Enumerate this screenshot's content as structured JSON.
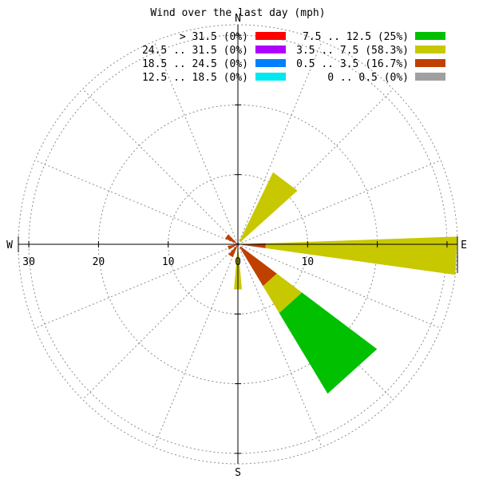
{
  "chart_data": {
    "type": "windrose",
    "title": "Wind over the last day (mph)",
    "directions": [
      "N",
      "E",
      "S",
      "W"
    ],
    "radial_ticks": [
      "0",
      "10",
      "20",
      "30"
    ],
    "rmax": 31.5,
    "legend": [
      {
        "label": "> 31.5 (0%)",
        "color": "#ff0000"
      },
      {
        "label": "24.5 .. 31.5 (0%)",
        "color": "#b000ff"
      },
      {
        "label": "18.5 .. 24.5 (0%)",
        "color": "#0080ff"
      },
      {
        "label": "12.5 .. 18.5 (0%)",
        "color": "#00e8f0"
      },
      {
        "label": "7.5 .. 12.5 (25%)",
        "color": "#00c000"
      },
      {
        "label": "3.5 .. 7.5 (58.3%)",
        "color": "#c8c800"
      },
      {
        "label": "0.5 .. 3.5 (16.7%)",
        "color": "#c04000"
      },
      {
        "label": "0 .. 0.5 (0%)",
        "color": "#a0a0a0"
      }
    ],
    "sectors": [
      {
        "direction": "NE",
        "bearing": 37,
        "half_width": 11,
        "bands": [
          {
            "band": "3.5 .. 7.5",
            "r_from": 0.5,
            "r_to": 11.5
          }
        ]
      },
      {
        "direction": "E",
        "bearing": 93,
        "half_width": 5,
        "bands": [
          {
            "band": "0.5 .. 3.5",
            "r_from": 0.5,
            "r_to": 4.0
          },
          {
            "band": "3.5 .. 7.5",
            "r_from": 4.0,
            "r_to": 31.5
          }
        ]
      },
      {
        "direction": "SE",
        "bearing": 138,
        "half_width": 11,
        "bands": [
          {
            "band": "0.5 .. 3.5",
            "r_from": 0.5,
            "r_to": 7.0
          },
          {
            "band": "3.5 .. 7.5",
            "r_from": 7.0,
            "r_to": 11.5
          },
          {
            "band": "7.5 .. 12.5",
            "r_from": 11.5,
            "r_to": 25.0
          }
        ]
      },
      {
        "direction": "S",
        "bearing": 180,
        "half_width": 5,
        "bands": [
          {
            "band": "3.5 .. 7.5",
            "r_from": 0.5,
            "r_to": 6.5
          }
        ]
      },
      {
        "direction": "SW",
        "bearing": 212,
        "half_width": 11,
        "bands": [
          {
            "band": "0.5 .. 3.5",
            "r_from": 0.2,
            "r_to": 2.0
          }
        ]
      },
      {
        "direction": "WSW",
        "bearing": 250,
        "half_width": 11,
        "bands": [
          {
            "band": "0.5 .. 3.5",
            "r_from": 0.2,
            "r_to": 1.5
          }
        ]
      },
      {
        "direction": "NW",
        "bearing": 305,
        "half_width": 11,
        "bands": [
          {
            "band": "0.5 .. 3.5",
            "r_from": 0.2,
            "r_to": 2.0
          }
        ]
      }
    ]
  }
}
